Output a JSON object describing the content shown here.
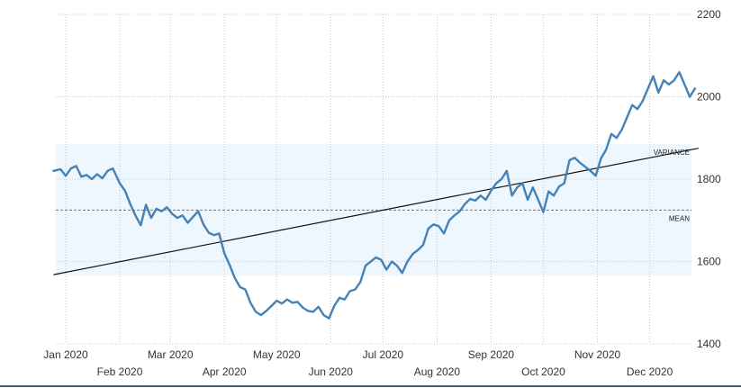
{
  "colors": {
    "line": "#4682b4",
    "band": "#eef7fd",
    "grid": "#c8c8c8",
    "trend": "#111111",
    "mean": "#777777"
  },
  "chart_data": {
    "type": "line",
    "title": "",
    "xlabel": "",
    "ylabel": "",
    "ylim": [
      1400,
      2200
    ],
    "y_ticks": [
      1400,
      1600,
      1800,
      2000,
      2200
    ],
    "y_axis_side": "right",
    "grid": true,
    "x_ticks": [
      {
        "date": "2020-01-01",
        "label": "Jan 2020"
      },
      {
        "date": "2020-02-01",
        "label": "Feb 2020"
      },
      {
        "date": "2020-03-01",
        "label": "Mar 2020"
      },
      {
        "date": "2020-04-01",
        "label": "Apr 2020"
      },
      {
        "date": "2020-05-01",
        "label": "May 2020"
      },
      {
        "date": "2020-06-01",
        "label": "Jun 2020"
      },
      {
        "date": "2020-07-01",
        "label": "Jul 2020"
      },
      {
        "date": "2020-08-01",
        "label": "Aug 2020"
      },
      {
        "date": "2020-09-01",
        "label": "Sep 2020"
      },
      {
        "date": "2020-10-01",
        "label": "Oct 2020"
      },
      {
        "date": "2020-11-01",
        "label": "Nov 2020"
      },
      {
        "date": "2020-12-01",
        "label": "Dec 2020"
      }
    ],
    "series": [
      {
        "points": [
          [
            "2019-12-25",
            1820
          ],
          [
            "2019-12-29",
            1824
          ],
          [
            "2020-01-01",
            1808
          ],
          [
            "2020-01-04",
            1826
          ],
          [
            "2020-01-07",
            1832
          ],
          [
            "2020-01-10",
            1806
          ],
          [
            "2020-01-13",
            1810
          ],
          [
            "2020-01-16",
            1800
          ],
          [
            "2020-01-19",
            1812
          ],
          [
            "2020-01-22",
            1802
          ],
          [
            "2020-01-25",
            1820
          ],
          [
            "2020-01-28",
            1826
          ],
          [
            "2020-02-01",
            1790
          ],
          [
            "2020-02-04",
            1772
          ],
          [
            "2020-02-07",
            1740
          ],
          [
            "2020-02-10",
            1712
          ],
          [
            "2020-02-13",
            1688
          ],
          [
            "2020-02-16",
            1738
          ],
          [
            "2020-02-19",
            1706
          ],
          [
            "2020-02-22",
            1728
          ],
          [
            "2020-02-25",
            1722
          ],
          [
            "2020-02-28",
            1732
          ],
          [
            "2020-03-02",
            1716
          ],
          [
            "2020-03-05",
            1706
          ],
          [
            "2020-03-08",
            1712
          ],
          [
            "2020-03-11",
            1694
          ],
          [
            "2020-03-14",
            1708
          ],
          [
            "2020-03-17",
            1722
          ],
          [
            "2020-03-20",
            1690
          ],
          [
            "2020-03-23",
            1670
          ],
          [
            "2020-03-26",
            1664
          ],
          [
            "2020-03-29",
            1668
          ],
          [
            "2020-04-01",
            1620
          ],
          [
            "2020-04-04",
            1592
          ],
          [
            "2020-04-07",
            1560
          ],
          [
            "2020-04-10",
            1538
          ],
          [
            "2020-04-13",
            1532
          ],
          [
            "2020-04-16",
            1500
          ],
          [
            "2020-04-19",
            1478
          ],
          [
            "2020-04-22",
            1470
          ],
          [
            "2020-04-25",
            1480
          ],
          [
            "2020-04-28",
            1492
          ],
          [
            "2020-05-01",
            1505
          ],
          [
            "2020-05-04",
            1498
          ],
          [
            "2020-05-07",
            1508
          ],
          [
            "2020-05-10",
            1500
          ],
          [
            "2020-05-13",
            1502
          ],
          [
            "2020-05-16",
            1488
          ],
          [
            "2020-05-19",
            1480
          ],
          [
            "2020-05-22",
            1478
          ],
          [
            "2020-05-25",
            1490
          ],
          [
            "2020-05-28",
            1470
          ],
          [
            "2020-05-31",
            1462
          ],
          [
            "2020-06-03",
            1492
          ],
          [
            "2020-06-06",
            1512
          ],
          [
            "2020-06-09",
            1508
          ],
          [
            "2020-06-12",
            1528
          ],
          [
            "2020-06-15",
            1532
          ],
          [
            "2020-06-18",
            1550
          ],
          [
            "2020-06-21",
            1590
          ],
          [
            "2020-06-24",
            1600
          ],
          [
            "2020-06-27",
            1610
          ],
          [
            "2020-06-30",
            1604
          ],
          [
            "2020-07-03",
            1580
          ],
          [
            "2020-07-06",
            1600
          ],
          [
            "2020-07-09",
            1590
          ],
          [
            "2020-07-12",
            1572
          ],
          [
            "2020-07-15",
            1600
          ],
          [
            "2020-07-18",
            1618
          ],
          [
            "2020-07-21",
            1628
          ],
          [
            "2020-07-24",
            1640
          ],
          [
            "2020-07-27",
            1680
          ],
          [
            "2020-07-30",
            1690
          ],
          [
            "2020-08-02",
            1686
          ],
          [
            "2020-08-05",
            1668
          ],
          [
            "2020-08-08",
            1700
          ],
          [
            "2020-08-11",
            1712
          ],
          [
            "2020-08-14",
            1722
          ],
          [
            "2020-08-17",
            1740
          ],
          [
            "2020-08-20",
            1752
          ],
          [
            "2020-08-23",
            1748
          ],
          [
            "2020-08-26",
            1760
          ],
          [
            "2020-08-29",
            1750
          ],
          [
            "2020-09-01",
            1772
          ],
          [
            "2020-09-04",
            1790
          ],
          [
            "2020-09-07",
            1800
          ],
          [
            "2020-09-10",
            1820
          ],
          [
            "2020-09-13",
            1760
          ],
          [
            "2020-09-16",
            1780
          ],
          [
            "2020-09-19",
            1790
          ],
          [
            "2020-09-22",
            1750
          ],
          [
            "2020-09-25",
            1780
          ],
          [
            "2020-09-28",
            1750
          ],
          [
            "2020-10-01",
            1720
          ],
          [
            "2020-10-04",
            1770
          ],
          [
            "2020-10-07",
            1760
          ],
          [
            "2020-10-10",
            1782
          ],
          [
            "2020-10-13",
            1790
          ],
          [
            "2020-10-16",
            1846
          ],
          [
            "2020-10-19",
            1852
          ],
          [
            "2020-10-22",
            1840
          ],
          [
            "2020-10-25",
            1830
          ],
          [
            "2020-10-28",
            1820
          ],
          [
            "2020-10-31",
            1808
          ],
          [
            "2020-11-03",
            1850
          ],
          [
            "2020-11-06",
            1872
          ],
          [
            "2020-11-09",
            1910
          ],
          [
            "2020-11-12",
            1900
          ],
          [
            "2020-11-15",
            1920
          ],
          [
            "2020-11-18",
            1950
          ],
          [
            "2020-11-21",
            1980
          ],
          [
            "2020-11-24",
            1970
          ],
          [
            "2020-11-27",
            1990
          ],
          [
            "2020-11-30",
            2020
          ],
          [
            "2020-12-03",
            2050
          ],
          [
            "2020-12-06",
            2010
          ],
          [
            "2020-12-09",
            2040
          ],
          [
            "2020-12-12",
            2030
          ],
          [
            "2020-12-15",
            2040
          ],
          [
            "2020-12-18",
            2060
          ],
          [
            "2020-12-21",
            2030
          ],
          [
            "2020-12-24",
            2000
          ],
          [
            "2020-12-27",
            2020
          ]
        ]
      }
    ],
    "mean": {
      "label": "MEAN",
      "value": 1725
    },
    "variance": {
      "label": "VARIANCE",
      "band": [
        1565,
        1885
      ]
    },
    "trend_line": {
      "start": [
        "2019-12-25",
        1568
      ],
      "end": [
        "2020-12-29",
        1875
      ]
    }
  }
}
